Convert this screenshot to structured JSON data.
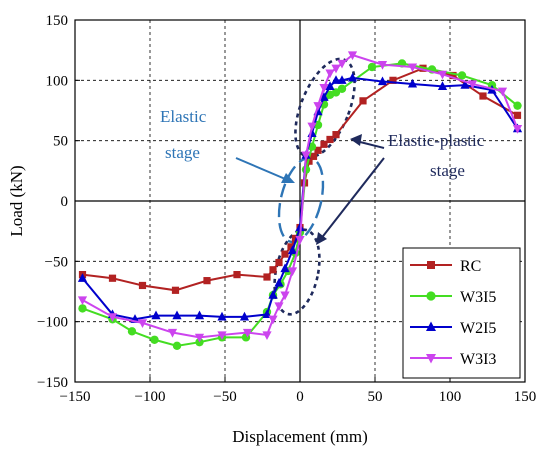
{
  "chart_data": {
    "type": "line",
    "xlabel": "Displacement (mm)",
    "ylabel": "Load (kN)",
    "xlim": [
      -150,
      150
    ],
    "ylim": [
      -150,
      150
    ],
    "xticks": [
      -150,
      -100,
      -50,
      0,
      50,
      100,
      150
    ],
    "yticks": [
      -150,
      -100,
      -50,
      0,
      50,
      100,
      150
    ],
    "xtick_labels": [
      "−150",
      "−100",
      "−50",
      "0",
      "50",
      "100",
      "150"
    ],
    "ytick_labels": [
      "−150",
      "−100",
      "−50",
      "0",
      "50",
      "100",
      "150"
    ],
    "grid": true,
    "legend_position": "bottom-right",
    "annotations": {
      "elastic_line1": "Elastic",
      "elastic_line2": "stage",
      "ep_line1": "Elastic-plastic",
      "ep_line2": "stage"
    },
    "series": [
      {
        "name": "RC",
        "color": "#b22222",
        "marker": "square",
        "x": [
          -145,
          -125,
          -105,
          -83,
          -62,
          -42,
          -22,
          -18,
          -14,
          -10,
          -6,
          -3,
          0,
          3,
          6,
          9,
          12,
          16,
          20,
          24,
          42,
          62,
          82,
          102,
          122,
          145
        ],
        "y": [
          -61,
          -64,
          -70,
          -74,
          -66,
          -61,
          -63,
          -57,
          -51,
          -44,
          -38,
          -31,
          -22,
          15,
          33,
          37,
          42,
          47,
          51,
          55,
          83,
          100,
          110,
          104,
          87,
          71
        ]
      },
      {
        "name": "W3I5",
        "color": "#44dd22",
        "marker": "circle",
        "x": [
          -145,
          -125,
          -112,
          -97,
          -82,
          -67,
          -52,
          -36,
          -22,
          -18,
          -13,
          -8,
          -3,
          0,
          4,
          8,
          12,
          16,
          20,
          24,
          28,
          48,
          68,
          88,
          108,
          128,
          145
        ],
        "y": [
          -89,
          -98,
          -108,
          -115,
          -120,
          -117,
          -113,
          -113,
          -92,
          -78,
          -69,
          -58,
          -43,
          -26,
          26,
          45,
          63,
          80,
          88,
          90,
          93,
          111,
          114,
          109,
          104,
          96,
          79
        ]
      },
      {
        "name": "W2I5",
        "color": "#0000cc",
        "marker": "triangle-up",
        "x": [
          -145,
          -125,
          -110,
          -96,
          -82,
          -67,
          -52,
          -37,
          -22,
          -18,
          -14,
          -10,
          -5,
          0,
          4,
          8,
          12,
          16,
          20,
          24,
          28,
          35,
          55,
          75,
          95,
          110,
          128,
          145
        ],
        "y": [
          -64,
          -94,
          -98,
          -95,
          -95,
          -95,
          -96,
          -96,
          -94,
          -78,
          -68,
          -56,
          -41,
          -22,
          38,
          56,
          74,
          86,
          95,
          100,
          100,
          102,
          99,
          97,
          95,
          96,
          92,
          60
        ]
      },
      {
        "name": "W3I3",
        "color": "#cc44ee",
        "marker": "triangle-down",
        "x": [
          -145,
          -125,
          -105,
          -85,
          -67,
          -52,
          -35,
          -22,
          -18,
          -14,
          -10,
          -5,
          0,
          4,
          8,
          12,
          16,
          20,
          24,
          28,
          35,
          55,
          75,
          95,
          115,
          135,
          145
        ],
        "y": [
          -82,
          -96,
          -101,
          -109,
          -113,
          -111,
          -109,
          -111,
          -98,
          -87,
          -78,
          -58,
          -32,
          38,
          62,
          79,
          94,
          106,
          110,
          114,
          121,
          113,
          111,
          105,
          97,
          91,
          60
        ]
      }
    ]
  }
}
